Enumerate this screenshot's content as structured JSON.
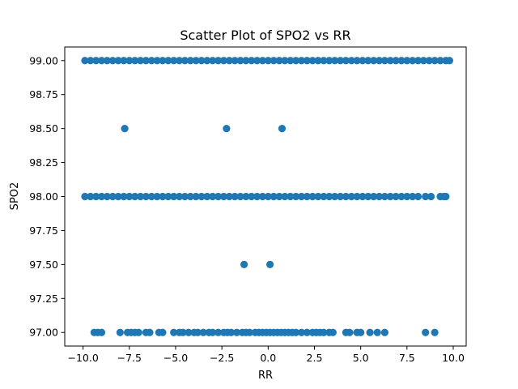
{
  "chart_data": {
    "type": "scatter",
    "title": "Scatter Plot of SPO2 vs RR",
    "xlabel": "RR",
    "ylabel": "SPO2",
    "xlim": [
      -10.99,
      10.7
    ],
    "ylim": [
      96.9,
      99.1
    ],
    "xticks": [
      -10.0,
      -7.5,
      -5.0,
      -2.5,
      0.0,
      2.5,
      5.0,
      7.5,
      10.0
    ],
    "xtick_labels": [
      "−10.0",
      "−7.5",
      "−5.0",
      "−2.5",
      "0.0",
      "2.5",
      "5.0",
      "7.5",
      "10.0"
    ],
    "yticks": [
      97.0,
      97.25,
      97.5,
      97.75,
      98.0,
      98.25,
      98.5,
      98.75,
      99.0
    ],
    "ytick_labels": [
      "97.00",
      "97.25",
      "97.50",
      "97.75",
      "98.00",
      "98.25",
      "98.50",
      "98.75",
      "99.00"
    ],
    "grid": false,
    "marker_color": "#1f77b4",
    "series": [
      {
        "x": [
          -9.9,
          -9.6,
          -9.3,
          -9.0,
          -8.7,
          -8.4,
          -8.1,
          -7.8,
          -7.5,
          -7.2,
          -6.9,
          -6.6,
          -6.3,
          -6.0,
          -5.7,
          -5.4,
          -5.1,
          -4.8,
          -4.5,
          -4.2,
          -3.9,
          -3.6,
          -3.3,
          -3.0,
          -2.7,
          -2.4,
          -2.1,
          -1.8,
          -1.5,
          -1.2,
          -0.9,
          -0.6,
          -0.3,
          0.0,
          0.3,
          0.6,
          0.9,
          1.2,
          1.5,
          1.8,
          2.1,
          2.4,
          2.7,
          3.0,
          3.3,
          3.6,
          3.9,
          4.2,
          4.5,
          4.8,
          5.1,
          5.4,
          5.7,
          6.0,
          6.3,
          6.6,
          6.9,
          7.2,
          7.5,
          7.8,
          8.1,
          8.4,
          8.7,
          9.0,
          9.3,
          9.6,
          9.8,
          -7.75,
          -2.25,
          0.75,
          -9.9,
          -9.6,
          -9.3,
          -9.0,
          -8.7,
          -8.4,
          -8.1,
          -7.8,
          -7.5,
          -7.2,
          -6.9,
          -6.6,
          -6.3,
          -6.0,
          -5.7,
          -5.4,
          -5.1,
          -4.8,
          -4.5,
          -4.2,
          -3.9,
          -3.6,
          -3.3,
          -3.0,
          -2.7,
          -2.4,
          -2.1,
          -1.8,
          -1.5,
          -1.2,
          -0.9,
          -0.6,
          -0.3,
          0.0,
          0.3,
          0.6,
          0.9,
          1.2,
          1.5,
          1.8,
          2.1,
          2.4,
          2.7,
          3.0,
          3.3,
          3.6,
          3.9,
          4.2,
          4.5,
          4.8,
          5.1,
          5.4,
          5.7,
          6.0,
          6.3,
          6.6,
          6.9,
          7.2,
          7.5,
          7.8,
          8.1,
          8.5,
          8.8,
          9.3,
          9.5,
          9.6,
          -1.3,
          0.1,
          -9.4,
          -9.2,
          -9.0,
          -8.0,
          -7.6,
          -7.4,
          -7.2,
          -7.0,
          -6.6,
          -6.4,
          -5.9,
          -5.7,
          -5.1,
          -4.8,
          -4.6,
          -4.3,
          -4.0,
          -3.8,
          -3.5,
          -3.2,
          -3.0,
          -2.7,
          -2.4,
          -2.2,
          -2.0,
          -1.7,
          -1.4,
          -1.2,
          -1.0,
          -0.7,
          -0.5,
          -0.3,
          -0.1,
          0.1,
          0.3,
          0.5,
          0.7,
          0.9,
          1.1,
          1.3,
          1.5,
          1.8,
          2.1,
          2.4,
          2.6,
          2.8,
          3.0,
          3.3,
          3.5,
          4.2,
          4.4,
          4.8,
          5.0,
          5.5,
          5.9,
          6.3,
          8.5,
          9.0
        ],
        "y": [
          99,
          99,
          99,
          99,
          99,
          99,
          99,
          99,
          99,
          99,
          99,
          99,
          99,
          99,
          99,
          99,
          99,
          99,
          99,
          99,
          99,
          99,
          99,
          99,
          99,
          99,
          99,
          99,
          99,
          99,
          99,
          99,
          99,
          99,
          99,
          99,
          99,
          99,
          99,
          99,
          99,
          99,
          99,
          99,
          99,
          99,
          99,
          99,
          99,
          99,
          99,
          99,
          99,
          99,
          99,
          99,
          99,
          99,
          99,
          99,
          99,
          99,
          99,
          99,
          99,
          99,
          99,
          98.5,
          98.5,
          98.5,
          98,
          98,
          98,
          98,
          98,
          98,
          98,
          98,
          98,
          98,
          98,
          98,
          98,
          98,
          98,
          98,
          98,
          98,
          98,
          98,
          98,
          98,
          98,
          98,
          98,
          98,
          98,
          98,
          98,
          98,
          98,
          98,
          98,
          98,
          98,
          98,
          98,
          98,
          98,
          98,
          98,
          98,
          98,
          98,
          98,
          98,
          98,
          98,
          98,
          98,
          98,
          98,
          98,
          98,
          98,
          98,
          98,
          98,
          98,
          98,
          98,
          98,
          98,
          98,
          98,
          98,
          97.5,
          97.5,
          97,
          97,
          97,
          97,
          97,
          97,
          97,
          97,
          97,
          97,
          97,
          97,
          97,
          97,
          97,
          97,
          97,
          97,
          97,
          97,
          97,
          97,
          97,
          97,
          97,
          97,
          97,
          97,
          97,
          97,
          97,
          97,
          97,
          97,
          97,
          97,
          97,
          97,
          97,
          97,
          97,
          97,
          97,
          97,
          97,
          97,
          97,
          97,
          97,
          97,
          97,
          97,
          97,
          97,
          97,
          97,
          97,
          97
        ]
      }
    ]
  }
}
